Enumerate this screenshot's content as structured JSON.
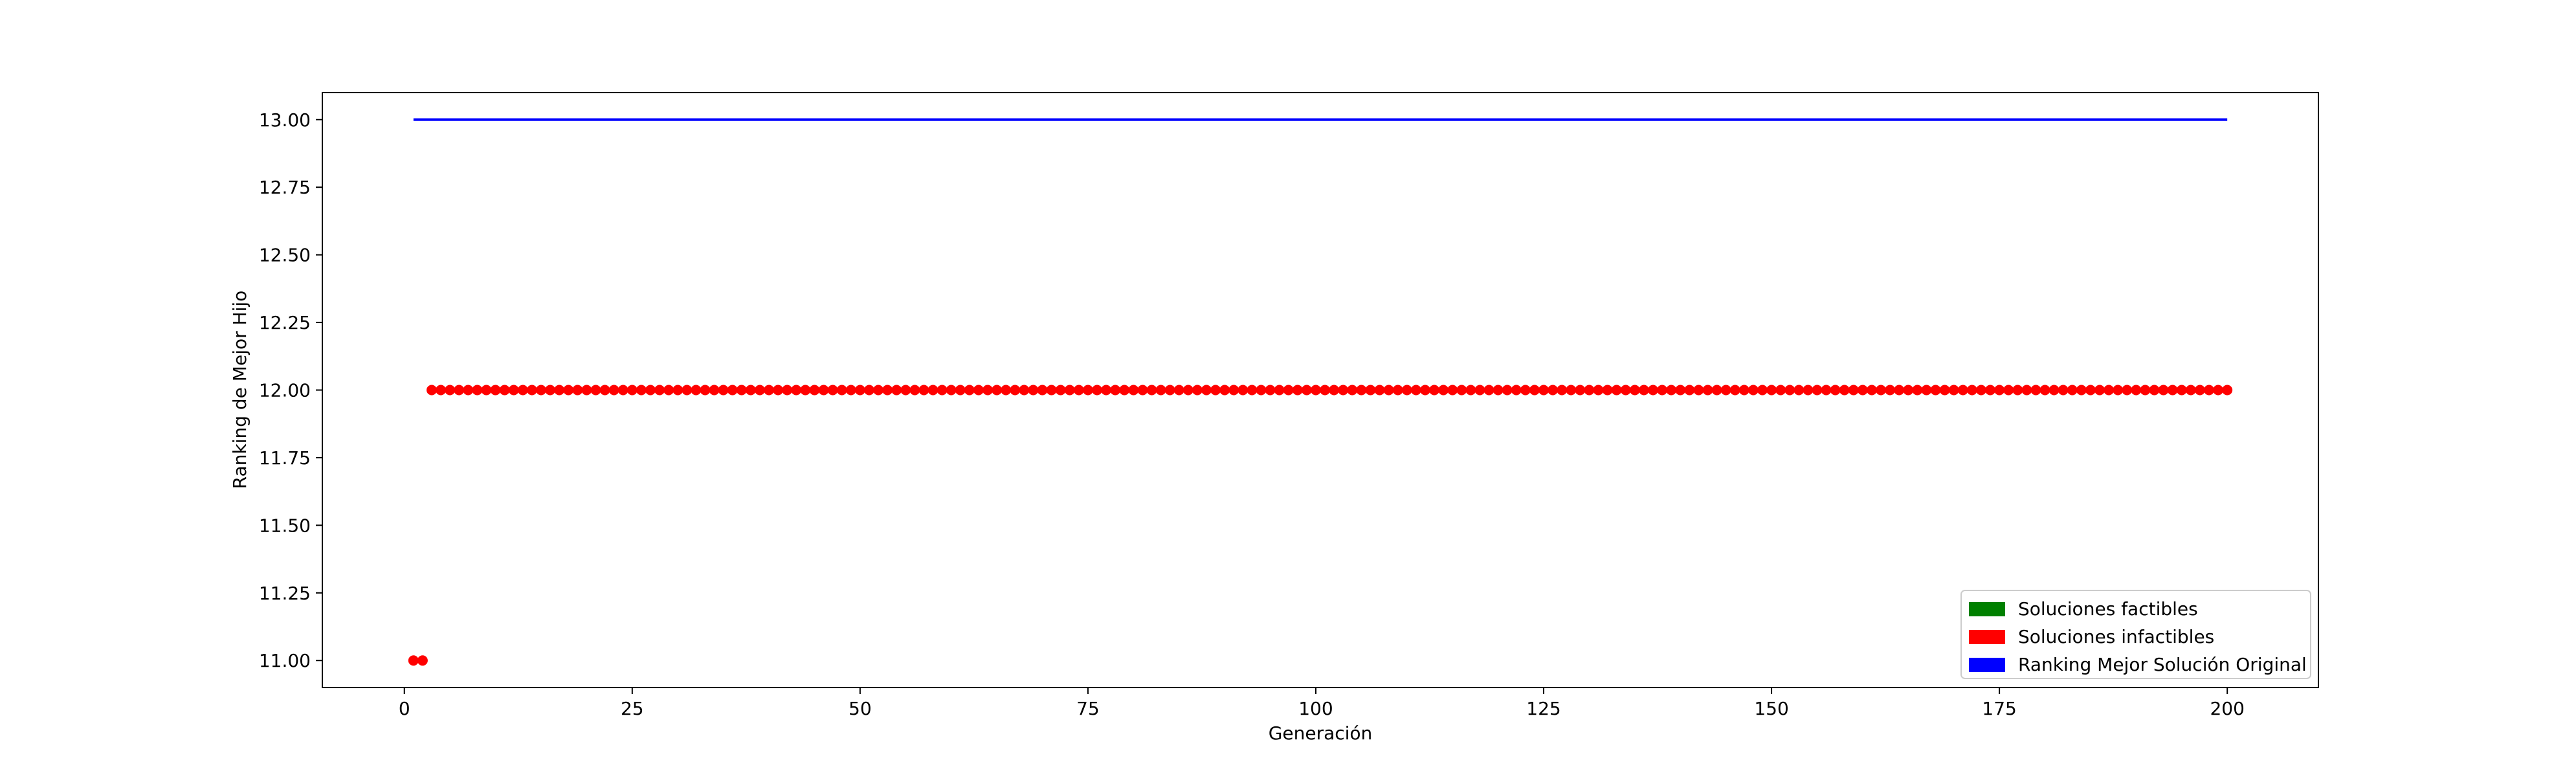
{
  "chart_data": {
    "type": "scatter",
    "title": "",
    "xlabel": "Generación",
    "ylabel": "Ranking de Mejor Hijo",
    "xlim": [
      -9,
      210
    ],
    "ylim": [
      10.9,
      13.1
    ],
    "x_ticks": [
      0,
      25,
      50,
      75,
      100,
      125,
      150,
      175,
      200
    ],
    "x_tick_labels": [
      "0",
      "25",
      "50",
      "75",
      "100",
      "125",
      "150",
      "175",
      "200"
    ],
    "y_ticks": [
      11.0,
      11.25,
      11.5,
      11.75,
      12.0,
      12.25,
      12.5,
      12.75,
      13.0
    ],
    "y_tick_labels": [
      "11.00",
      "11.25",
      "11.50",
      "11.75",
      "12.00",
      "12.25",
      "12.50",
      "12.75",
      "13.00"
    ],
    "grid": false,
    "legend_position": "bottom-right",
    "legend": [
      {
        "label": "Soluciones factibles",
        "color": "#008000"
      },
      {
        "label": "Soluciones infactibles",
        "color": "#ff0000"
      },
      {
        "label": "Ranking Mejor Solución Original",
        "color": "#0000ff"
      }
    ],
    "series": [
      {
        "name": "Soluciones infactibles",
        "kind": "scatter",
        "color": "#ff0000",
        "points": [
          {
            "x_from": 1,
            "x_to": 2,
            "y": 11.0
          },
          {
            "x_from": 3,
            "x_to": 200,
            "y": 12.0
          }
        ]
      },
      {
        "name": "Ranking Mejor Solución Original",
        "kind": "line",
        "color": "#0000ff",
        "x": [
          1,
          200
        ],
        "y": [
          13.0,
          13.0
        ]
      }
    ]
  }
}
